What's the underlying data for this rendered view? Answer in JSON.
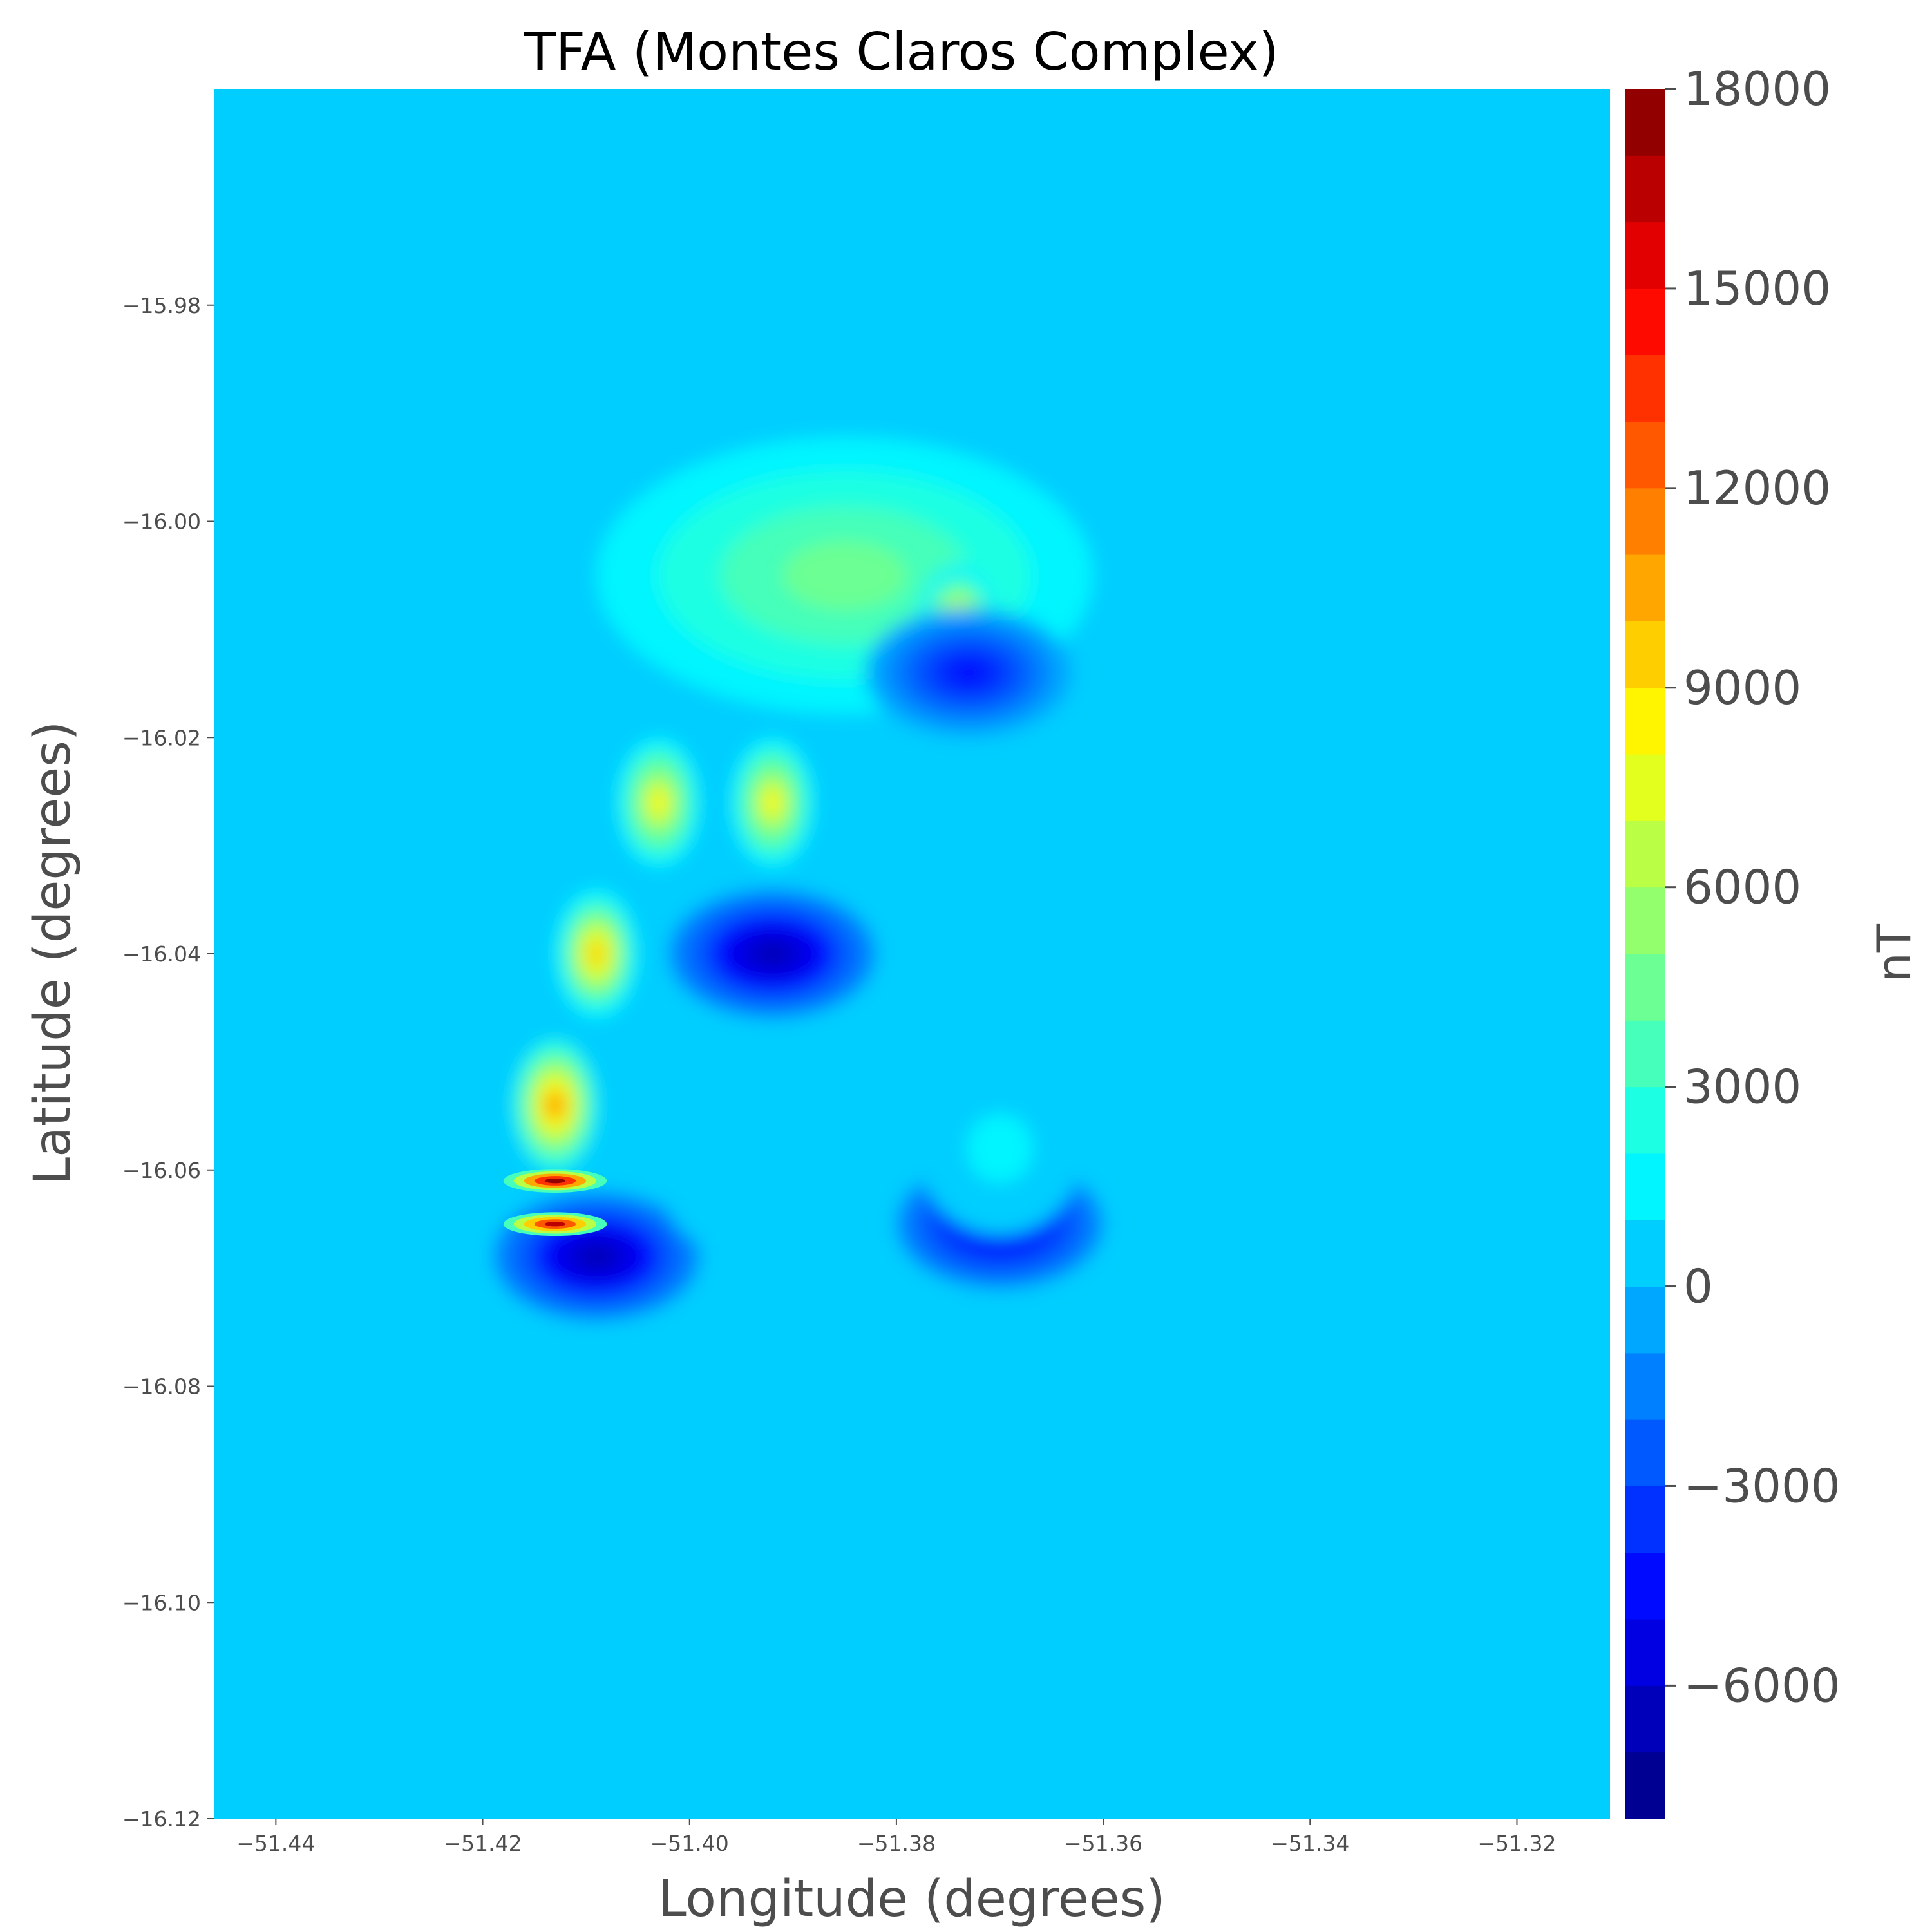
{
  "chart_data": {
    "type": "heatmap",
    "subtype": "filled-contour",
    "title": "TFA (Montes Claros Complex)",
    "xlabel": "Longitude (degrees)",
    "ylabel": "Latitude (degrees)",
    "xlim": [
      -51.446,
      -51.311
    ],
    "ylim": [
      -16.12,
      -15.96
    ],
    "x_ticks": [
      -51.44,
      -51.42,
      -51.4,
      -51.38,
      -51.36,
      -51.34,
      -51.32
    ],
    "x_tick_labels": [
      "−51.44",
      "−51.42",
      "−51.40",
      "−51.38",
      "−51.36",
      "−51.34",
      "−51.32"
    ],
    "y_ticks": [
      -15.98,
      -16.0,
      -16.02,
      -16.04,
      -16.06,
      -16.08,
      -16.1,
      -16.12
    ],
    "y_tick_labels": [
      "−15.98",
      "−16.00",
      "−16.02",
      "−16.04",
      "−16.06",
      "−16.08",
      "−16.10",
      "−16.12"
    ],
    "colorbar": {
      "label": "nT",
      "colormap": "jet",
      "range": [
        -8000,
        18000
      ],
      "level_step": 1000,
      "ticks": [
        18000,
        15000,
        12000,
        9000,
        6000,
        3000,
        0,
        -3000,
        -6000
      ],
      "tick_labels": [
        "18000",
        "15000",
        "12000",
        "9000",
        "6000",
        "3000",
        "0",
        "−3000",
        "−6000"
      ]
    },
    "background_value": 0,
    "features": [
      {
        "kind": "positive-arc",
        "lon": -51.385,
        "lat": -16.005,
        "value": 4500
      },
      {
        "kind": "positive-peak",
        "lon": -51.374,
        "lat": -16.01,
        "value": 9500
      },
      {
        "kind": "positive-peak",
        "lon": -51.403,
        "lat": -16.026,
        "value": 8000
      },
      {
        "kind": "positive-peak",
        "lon": -51.392,
        "lat": -16.026,
        "value": 8000
      },
      {
        "kind": "positive-peak",
        "lon": -51.409,
        "lat": -16.04,
        "value": 9000
      },
      {
        "kind": "positive-peak",
        "lon": -51.413,
        "lat": -16.054,
        "value": 11000
      },
      {
        "kind": "positive-spike",
        "lon": -51.413,
        "lat": -16.061,
        "value": 17000
      },
      {
        "kind": "positive-spike",
        "lon": -51.413,
        "lat": -16.065,
        "value": 16000
      },
      {
        "kind": "negative-low",
        "lon": -51.392,
        "lat": -16.04,
        "value": -7000
      },
      {
        "kind": "negative-low",
        "lon": -51.409,
        "lat": -16.068,
        "value": -7000
      },
      {
        "kind": "negative-low",
        "lon": -51.373,
        "lat": -16.014,
        "value": -5000
      },
      {
        "kind": "negative-low",
        "lon": -51.37,
        "lat": -16.065,
        "value": -6000
      },
      {
        "kind": "positive-patch",
        "lon": -51.37,
        "lat": -16.058,
        "value": 1500
      },
      {
        "kind": "positive-patch",
        "lon": -51.395,
        "lat": -16.06,
        "value": 500
      }
    ]
  }
}
